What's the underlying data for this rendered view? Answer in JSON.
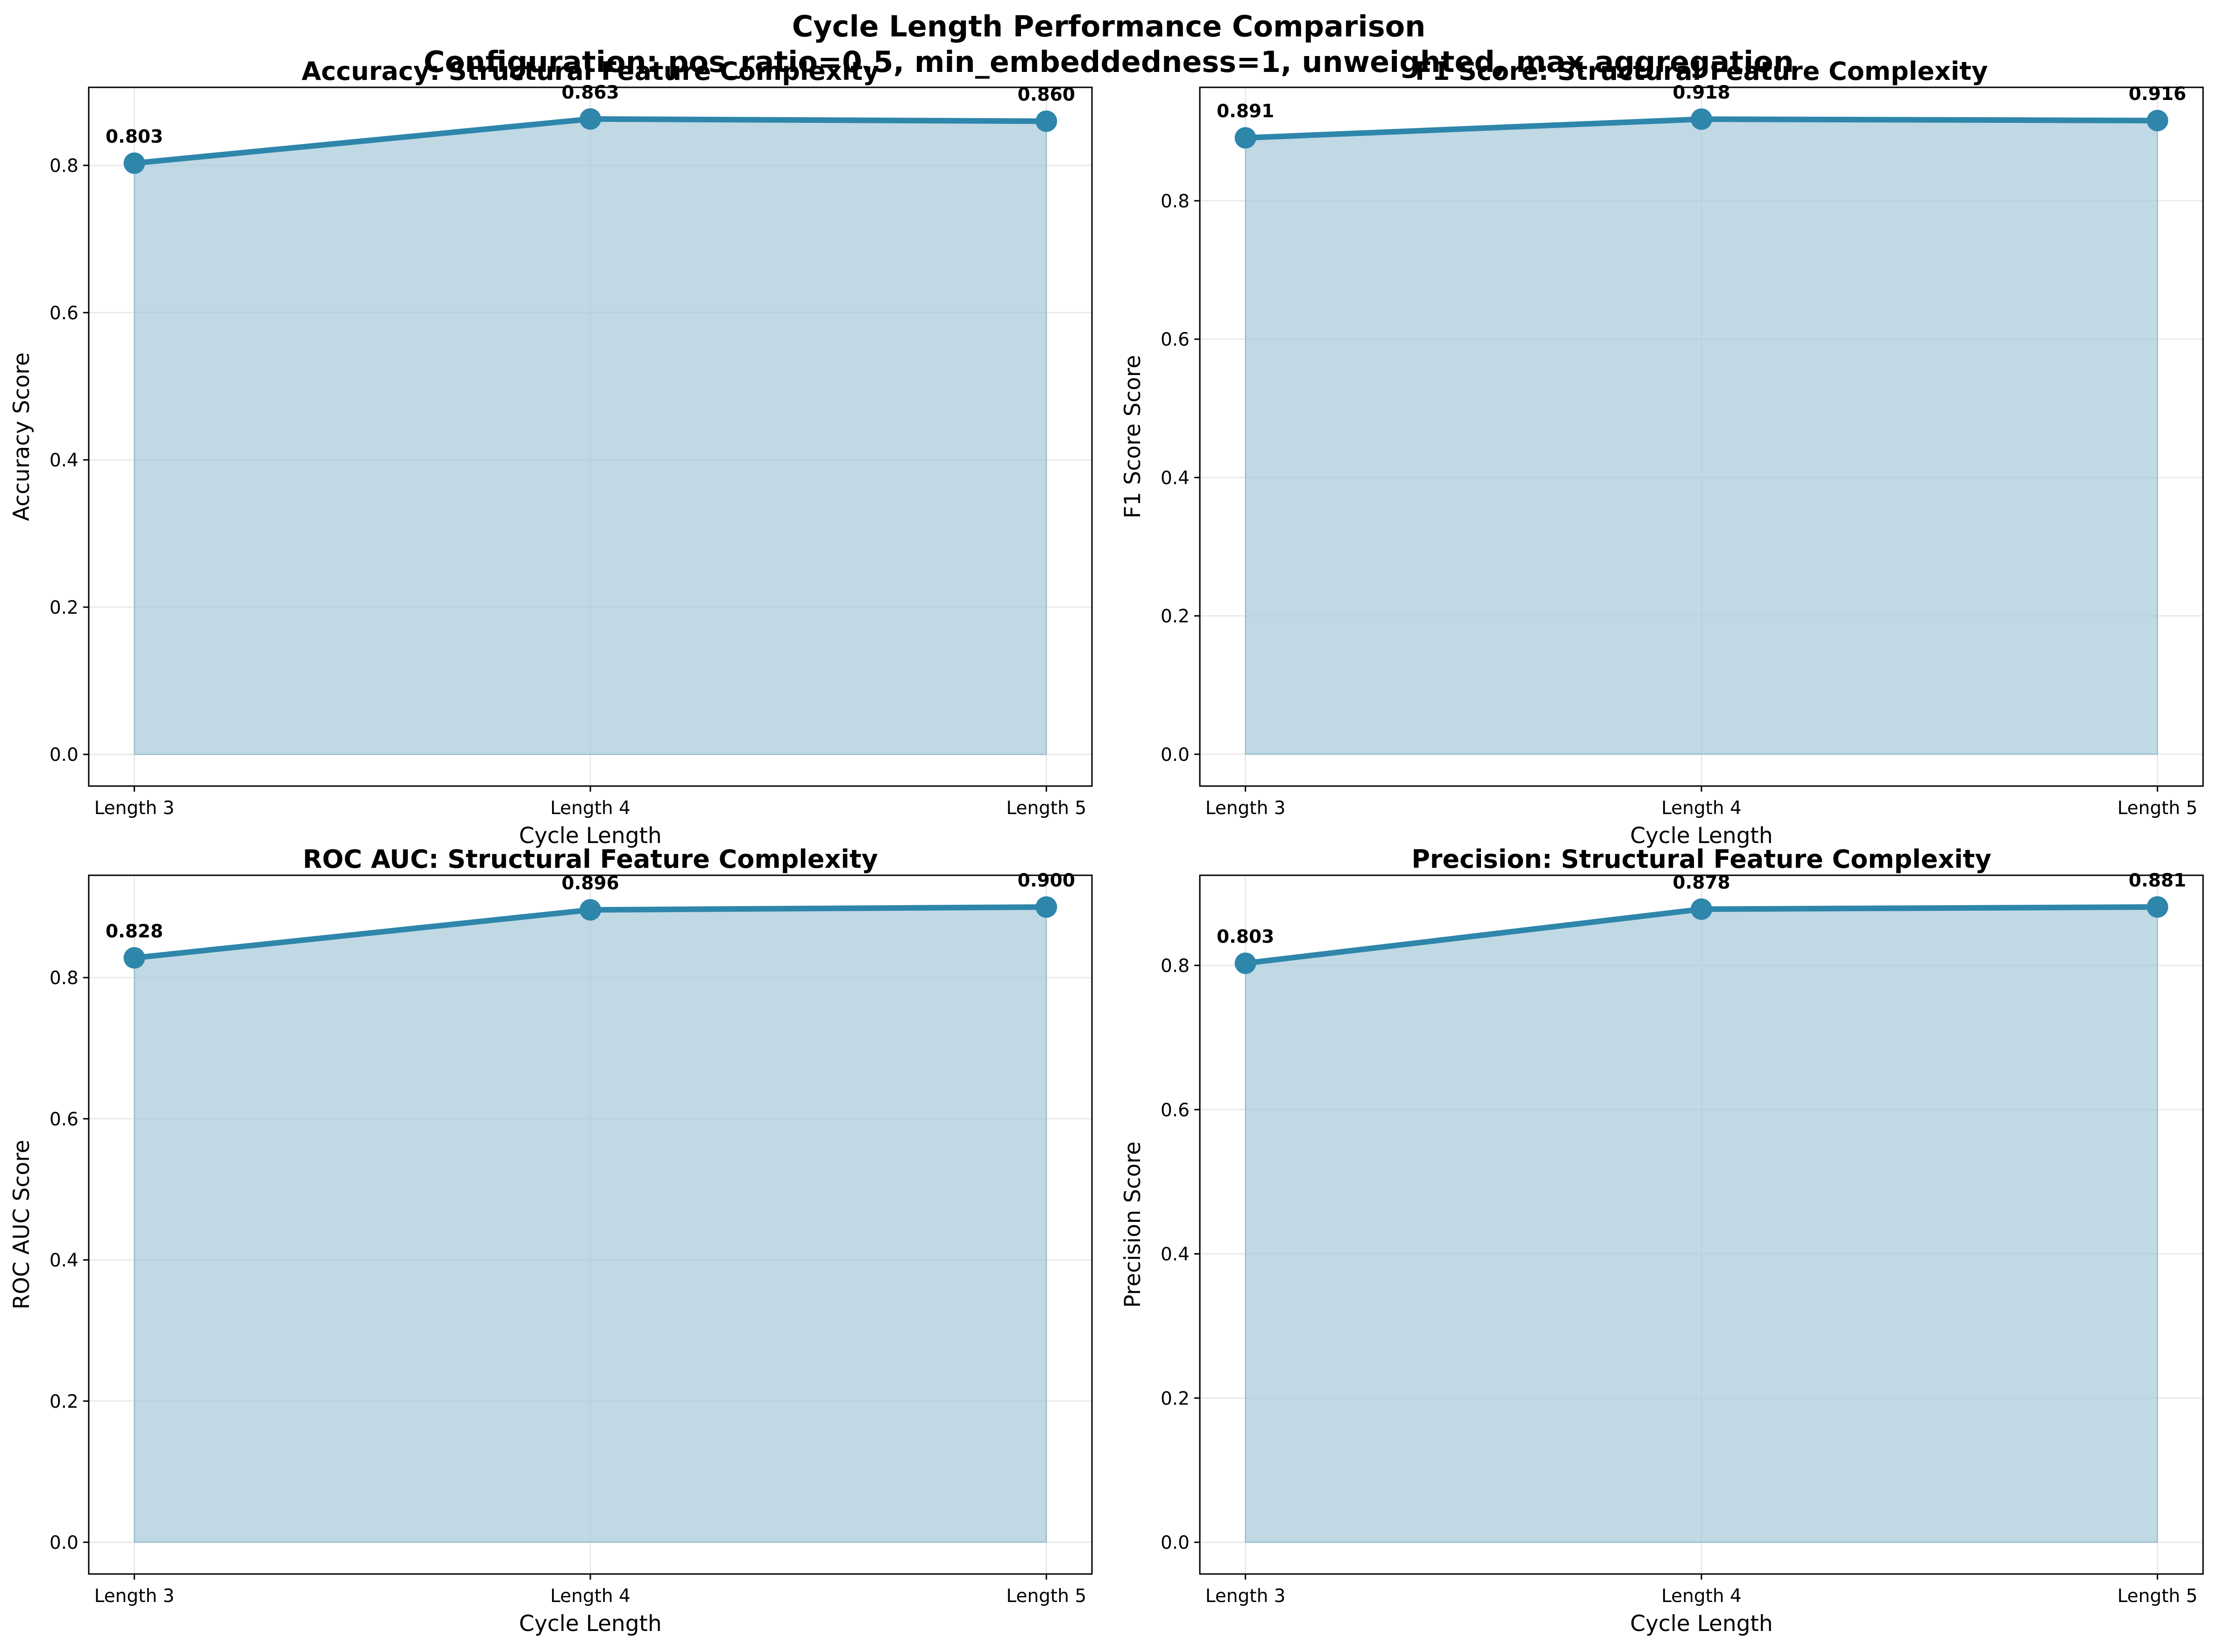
{
  "figure": {
    "title_line1": "Cycle Length Performance Comparison",
    "title_line2": "Configuration: pos_ratio=0.5, min_embeddedness=1, unweighted, max aggregation"
  },
  "colors": {
    "line": "#2e86ab",
    "fill": "#a5c9da",
    "grid": "#e6e6e6",
    "axes": "#000000"
  },
  "chart_data": [
    {
      "type": "area",
      "title": "Accuracy: Structural Feature Complexity",
      "xlabel": "Cycle Length",
      "ylabel": "Accuracy Score",
      "categories": [
        "Length 3",
        "Length 4",
        "Length 5"
      ],
      "values": [
        0.803,
        0.863,
        0.86
      ],
      "data_labels": [
        "0.803",
        "0.863",
        "0.860"
      ],
      "yticks": [
        "0.0",
        "0.2",
        "0.4",
        "0.6",
        "0.8"
      ],
      "ytick_values": [
        0.0,
        0.2,
        0.4,
        0.6,
        0.8
      ],
      "ylim": [
        -0.043,
        0.906
      ],
      "grid": true
    },
    {
      "type": "area",
      "title": "F1 Score: Structural Feature Complexity",
      "xlabel": "Cycle Length",
      "ylabel": "F1 Score Score",
      "categories": [
        "Length 3",
        "Length 4",
        "Length 5"
      ],
      "values": [
        0.891,
        0.918,
        0.916
      ],
      "data_labels": [
        "0.891",
        "0.918",
        "0.916"
      ],
      "yticks": [
        "0.0",
        "0.2",
        "0.4",
        "0.6",
        "0.8"
      ],
      "ytick_values": [
        0.0,
        0.2,
        0.4,
        0.6,
        0.8
      ],
      "ylim": [
        -0.046,
        0.964
      ],
      "grid": true
    },
    {
      "type": "area",
      "title": "ROC AUC: Structural Feature Complexity",
      "xlabel": "Cycle Length",
      "ylabel": "ROC AUC Score",
      "categories": [
        "Length 3",
        "Length 4",
        "Length 5"
      ],
      "values": [
        0.828,
        0.896,
        0.9
      ],
      "data_labels": [
        "0.828",
        "0.896",
        "0.900"
      ],
      "yticks": [
        "0.0",
        "0.2",
        "0.4",
        "0.6",
        "0.8"
      ],
      "ytick_values": [
        0.0,
        0.2,
        0.4,
        0.6,
        0.8
      ],
      "ylim": [
        -0.045,
        0.945
      ],
      "grid": true
    },
    {
      "type": "area",
      "title": "Precision: Structural Feature Complexity",
      "xlabel": "Cycle Length",
      "ylabel": "Precision Score",
      "categories": [
        "Length 3",
        "Length 4",
        "Length 5"
      ],
      "values": [
        0.803,
        0.878,
        0.881
      ],
      "data_labels": [
        "0.803",
        "0.878",
        "0.881"
      ],
      "yticks": [
        "0.0",
        "0.2",
        "0.4",
        "0.6",
        "0.8"
      ],
      "ytick_values": [
        0.0,
        0.2,
        0.4,
        0.6,
        0.8
      ],
      "ylim": [
        -0.044,
        0.925
      ],
      "grid": true
    }
  ]
}
